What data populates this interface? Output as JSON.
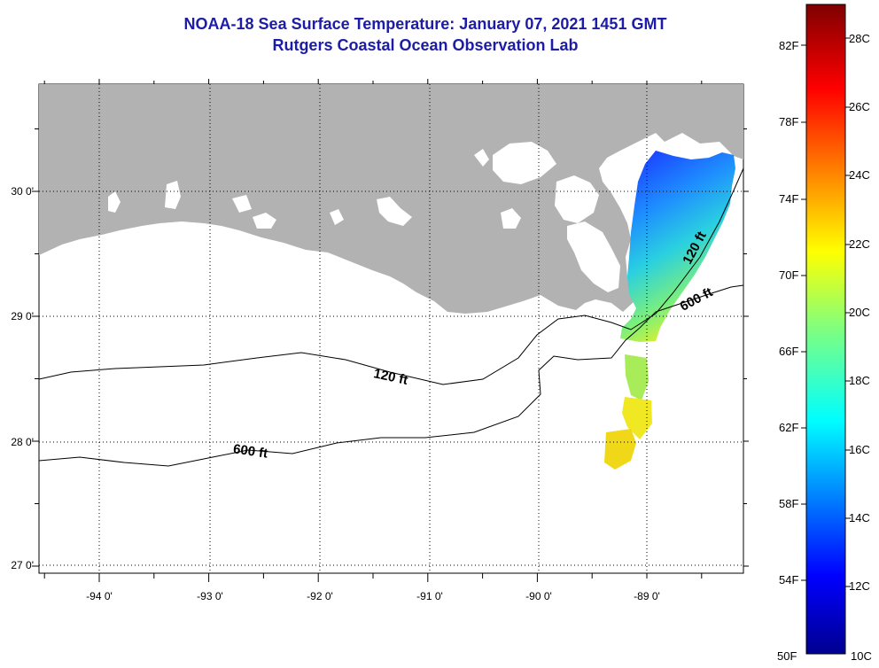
{
  "title": {
    "line1": "NOAA-18 Sea Surface Temperature:  January 07, 2021 1451 GMT",
    "line2": "Rutgers Coastal Ocean Observation Lab"
  },
  "axes": {
    "lon_labels": [
      "-94 0'",
      "-93 0'",
      "-92 0'",
      "-91 0'",
      "-90 0'",
      "-89 0'"
    ],
    "lat_labels": [
      "30 0'",
      "29 0'",
      "28 0'",
      "27 0'"
    ]
  },
  "contours": {
    "shelf_label": "120 ft",
    "slope_label": "600 ft"
  },
  "colorbar": {
    "fahrenheit_labels": [
      "82F",
      "78F",
      "74F",
      "70F",
      "66F",
      "62F",
      "58F",
      "54F",
      "50F"
    ],
    "celsius_labels": [
      "28C",
      "26C",
      "24C",
      "22C",
      "20C",
      "18C",
      "16C",
      "14C",
      "12C",
      "10C"
    ],
    "min_c": 10,
    "max_c": 29
  },
  "colors": {
    "land": "#b2b2b2",
    "title": "#1c1ca8",
    "frame": "#000000"
  }
}
